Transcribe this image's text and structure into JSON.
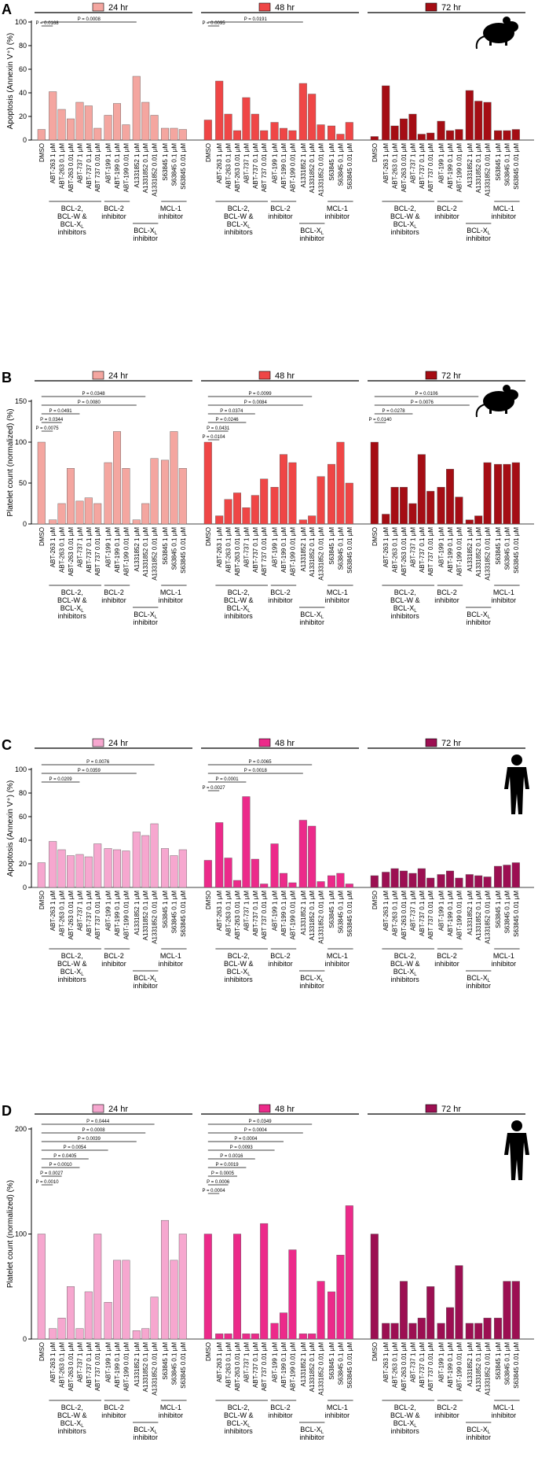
{
  "colors": {
    "mouse_24": "#f4a6a0",
    "mouse_48": "#ef4646",
    "mouse_72": "#a50d14",
    "human_24": "#f6a7cf",
    "human_48": "#ec2a8a",
    "human_72": "#9c0f52"
  },
  "conditions": [
    "DMSO",
    "ABT-263 1 µM",
    "ABT-263 0.1 µM",
    "ABT-263 0.01 µM",
    "ABT-737 1 µM",
    "ABT-737 0.1 µM",
    "ABT 737 0.01 µM",
    "ABT-199 1 µM",
    "ABT-199 0.1 µM",
    "ABT-199 0.01 µM",
    "A1331852 1 µM",
    "A1331852 0.1 µM",
    "A1331852 0.01 µM",
    "S63845 1 µM",
    "S63845 0.1 µM",
    "S63845 0.01 µM"
  ],
  "groups": [
    {
      "label_lines": [
        "BCL-2,",
        "BCL-W &",
        "BCL-X",
        "inhibitors"
      ],
      "sub_line_index": 2
    },
    {
      "label_lines": [
        "BCL-2",
        "inhibitor"
      ]
    },
    {
      "label_lines": [
        "BCL-X",
        "inhibitor"
      ],
      "sub_line_index": 0
    },
    {
      "label_lines": [
        "MCL-1",
        "inhibitor"
      ]
    }
  ],
  "chart_data": [
    {
      "panel": "A",
      "type": "bar",
      "species": "mouse",
      "ylabel": "Apoptosis (Annexin V⁺) (%)",
      "ylim": [
        0,
        100
      ],
      "yticks": [
        0,
        20,
        40,
        60,
        80,
        100
      ],
      "timepoints": [
        "24 hr",
        "48 hr",
        "72 hr"
      ],
      "series": [
        {
          "name": "24 hr",
          "values": [
            9,
            41,
            26,
            18,
            32,
            29,
            10,
            21,
            31,
            13,
            54,
            32,
            21,
            10,
            10,
            9
          ]
        },
        {
          "name": "48 hr",
          "values": [
            17,
            50,
            22,
            8,
            36,
            22,
            8,
            15,
            10,
            8,
            48,
            39,
            13,
            12,
            5,
            15
          ]
        },
        {
          "name": "72 hr",
          "values": [
            3,
            46,
            12,
            18,
            22,
            5,
            6,
            16,
            8,
            9,
            42,
            33,
            32,
            8,
            8,
            9
          ]
        }
      ],
      "comparisons": [
        {
          "label": "P = 0.0168",
          "group": 0,
          "from": 0,
          "to": 1
        },
        {
          "label": "P = 0.0008",
          "group": 0,
          "from": 0,
          "to": 10
        },
        {
          "label": "P = 0.0095",
          "group": 1,
          "from": 0,
          "to": 1
        },
        {
          "label": "P = 0.0191",
          "group": 1,
          "from": 0,
          "to": 10
        }
      ]
    },
    {
      "panel": "B",
      "type": "bar",
      "species": "mouse",
      "ylabel": "Platelet count (normalized) (%)",
      "ylim": [
        0,
        150
      ],
      "yticks": [
        0,
        50,
        100,
        150
      ],
      "timepoints": [
        "24 hr",
        "48 hr",
        "72 hr"
      ],
      "series": [
        {
          "name": "24 hr",
          "values": [
            100,
            5,
            25,
            68,
            28,
            32,
            25,
            75,
            113,
            68,
            5,
            25,
            80,
            78,
            113,
            68
          ]
        },
        {
          "name": "48 hr",
          "values": [
            100,
            10,
            30,
            38,
            20,
            35,
            55,
            45,
            85,
            75,
            5,
            10,
            58,
            73,
            100,
            50
          ]
        },
        {
          "name": "72 hr",
          "values": [
            100,
            12,
            45,
            45,
            25,
            85,
            40,
            45,
            67,
            33,
            5,
            10,
            75,
            73,
            73,
            75
          ]
        }
      ],
      "comparisons": [
        {
          "label": "P = 0.0075",
          "group": 0,
          "from": 0,
          "to": 1
        },
        {
          "label": "P = 0.0344",
          "group": 0,
          "from": 0,
          "to": 2
        },
        {
          "label": "P = 0.0491",
          "group": 0,
          "from": 0,
          "to": 4
        },
        {
          "label": "P = 0.0080",
          "group": 0,
          "from": 0,
          "to": 10
        },
        {
          "label": "P = 0.0348",
          "group": 0,
          "from": 0,
          "to": 11
        },
        {
          "label": "P = 0.0104",
          "group": 1,
          "from": 0,
          "to": 1
        },
        {
          "label": "P = 0.0431",
          "group": 1,
          "from": 0,
          "to": 2
        },
        {
          "label": "P = 0.0246",
          "group": 1,
          "from": 0,
          "to": 4
        },
        {
          "label": "P = 0.0374",
          "group": 1,
          "from": 0,
          "to": 5
        },
        {
          "label": "P = 0.0084",
          "group": 1,
          "from": 0,
          "to": 10
        },
        {
          "label": "P = 0.0099",
          "group": 1,
          "from": 0,
          "to": 11
        },
        {
          "label": "P = 0.0140",
          "group": 2,
          "from": 0,
          "to": 1
        },
        {
          "label": "P = 0.0278",
          "group": 2,
          "from": 0,
          "to": 4
        },
        {
          "label": "P = 0.0076",
          "group": 2,
          "from": 0,
          "to": 10
        },
        {
          "label": "P = 0.0106",
          "group": 2,
          "from": 0,
          "to": 11
        }
      ]
    },
    {
      "panel": "C",
      "type": "bar",
      "species": "human",
      "ylabel": "Apoptosis (Annexin V⁺) (%)",
      "ylim": [
        0,
        100
      ],
      "yticks": [
        0,
        20,
        40,
        60,
        80,
        100
      ],
      "timepoints": [
        "24 hr",
        "48 hr",
        "72 hr"
      ],
      "series": [
        {
          "name": "24 hr",
          "values": [
            21,
            39,
            32,
            27,
            28,
            26,
            37,
            33,
            32,
            31,
            47,
            44,
            54,
            33,
            27,
            32
          ]
        },
        {
          "name": "48 hr",
          "values": [
            23,
            55,
            25,
            6,
            77,
            24,
            3,
            37,
            12,
            4,
            57,
            52,
            5,
            10,
            12,
            3
          ]
        },
        {
          "name": "72 hr",
          "values": [
            10,
            13,
            16,
            14,
            12,
            16,
            8,
            11,
            14,
            8,
            11,
            10,
            9,
            18,
            19,
            21
          ]
        }
      ],
      "comparisons": [
        {
          "label": "P = 0.0209",
          "group": 0,
          "from": 0,
          "to": 4
        },
        {
          "label": "P = 0.0359",
          "group": 0,
          "from": 0,
          "to": 10
        },
        {
          "label": "P = 0.0076",
          "group": 0,
          "from": 0,
          "to": 12
        },
        {
          "label": "P = 0.0027",
          "group": 1,
          "from": 0,
          "to": 1
        },
        {
          "label": "P = 0.0001",
          "group": 1,
          "from": 0,
          "to": 4
        },
        {
          "label": "P = 0.0018",
          "group": 1,
          "from": 0,
          "to": 10
        },
        {
          "label": "P = 0.0065",
          "group": 1,
          "from": 0,
          "to": 11
        }
      ]
    },
    {
      "panel": "D",
      "type": "bar",
      "species": "human",
      "ylabel": "Platelet count (normalized) (%)",
      "ylim": [
        0,
        200
      ],
      "yticks": [
        0,
        100,
        200
      ],
      "timepoints": [
        "24 hr",
        "48 hr",
        "72 hr"
      ],
      "series": [
        {
          "name": "24 hr",
          "values": [
            100,
            10,
            20,
            50,
            10,
            45,
            100,
            35,
            75,
            75,
            8,
            10,
            40,
            113,
            75,
            100
          ]
        },
        {
          "name": "48 hr",
          "values": [
            100,
            5,
            5,
            100,
            5,
            5,
            110,
            15,
            25,
            85,
            5,
            5,
            55,
            45,
            80,
            127
          ]
        },
        {
          "name": "72 hr",
          "values": [
            100,
            15,
            15,
            55,
            15,
            20,
            50,
            15,
            30,
            70,
            15,
            15,
            20,
            20,
            55,
            55
          ]
        }
      ],
      "comparisons": [
        {
          "label": "P = 0.0010",
          "group": 0,
          "from": 0,
          "to": 1
        },
        {
          "label": "P = 0.0027",
          "group": 0,
          "from": 0,
          "to": 2
        },
        {
          "label": "P = 0.0010",
          "group": 0,
          "from": 0,
          "to": 4
        },
        {
          "label": "P = 0.0405",
          "group": 0,
          "from": 0,
          "to": 5
        },
        {
          "label": "P = 0.0054",
          "group": 0,
          "from": 0,
          "to": 7
        },
        {
          "label": "P = 0.0039",
          "group": 0,
          "from": 0,
          "to": 10
        },
        {
          "label": "P = 0.0008",
          "group": 0,
          "from": 0,
          "to": 11
        },
        {
          "label": "P = 0.0444",
          "group": 0,
          "from": 0,
          "to": 12
        },
        {
          "label": "P = 0.0004",
          "group": 1,
          "from": 0,
          "to": 1
        },
        {
          "label": "P = 0.0006",
          "group": 1,
          "from": 0,
          "to": 2
        },
        {
          "label": "P = 0.0005",
          "group": 1,
          "from": 0,
          "to": 3
        },
        {
          "label": "P = 0.0019",
          "group": 1,
          "from": 0,
          "to": 4
        },
        {
          "label": "P = 0.0016",
          "group": 1,
          "from": 0,
          "to": 5
        },
        {
          "label": "P = 0.0093",
          "group": 1,
          "from": 0,
          "to": 7
        },
        {
          "label": "P = 0.0004",
          "group": 1,
          "from": 0,
          "to": 8
        },
        {
          "label": "P = 0.0004",
          "group": 1,
          "from": 0,
          "to": 10
        },
        {
          "label": "P = 0.0349",
          "group": 1,
          "from": 0,
          "to": 11
        }
      ]
    }
  ]
}
